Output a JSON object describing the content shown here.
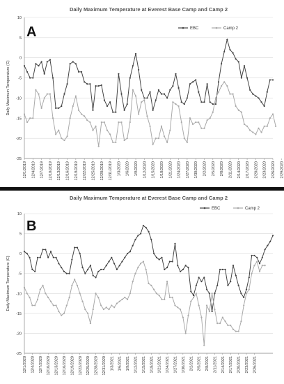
{
  "chart_data": [
    {
      "type": "line",
      "panel_label": "A",
      "title": "Daily Maximum Temperature at Everest Base Camp and Camp 2",
      "ylabel": "Daily Maximum Temperature (C)",
      "xlabel": "",
      "ylim": [
        -25,
        10
      ],
      "yticks": [
        -25,
        -20,
        -15,
        -10,
        -5,
        0,
        5,
        10
      ],
      "grid": true,
      "legend_position": "top-right",
      "tick_labels": [
        "12/1/2019",
        "12/4/2019",
        "12/7/2019",
        "12/10/2019",
        "12/13/2019",
        "12/16/2019",
        "12/19/2019",
        "12/22/2019",
        "12/25/2019",
        "12/28/2019",
        "12/31/2019",
        "1/3/2020",
        "1/6/2020",
        "1/9/2020",
        "1/12/2020",
        "1/15/2020",
        "1/18/2020",
        "1/21/2020",
        "1/24/2020",
        "1/27/2020",
        "1/30/2020",
        "2/2/2020",
        "2/5/2020",
        "2/8/2020",
        "2/11/2020",
        "2/14/2020",
        "2/17/2020",
        "2/20/2020",
        "2/23/2020",
        "2/26/2020",
        "2/29/2020"
      ],
      "series": [
        {
          "name": "EBC",
          "color": "#444444",
          "values": [
            -2,
            -3.5,
            -5,
            -5,
            -1.5,
            -2,
            -1,
            -4,
            -1,
            -0.5,
            -5,
            -12.5,
            -12.5,
            -12,
            -9,
            -6.5,
            -1.5,
            -1,
            -1.5,
            -3.5,
            -3.5,
            -6,
            -6.5,
            -6.5,
            -13,
            -7,
            -7,
            -6.8,
            -10.5,
            -12,
            -11,
            -13.5,
            -13.5,
            -4,
            -9,
            -13,
            -11.5,
            -5,
            -2,
            1,
            -3,
            -8,
            -10,
            -10,
            -8.5,
            -13,
            -10.5,
            -8,
            -9,
            -9,
            -10,
            -8,
            -7,
            -4,
            -7.5,
            -11,
            -11.5,
            -10,
            -6.5,
            -6,
            -5.5,
            -8.5,
            -11,
            -11,
            -6.5,
            -11,
            -11.5,
            -11.5,
            -6,
            -1.5,
            1.5,
            4.5,
            2,
            1.2,
            -0.3,
            -1,
            -5,
            -2,
            -5,
            -8,
            -9,
            -9.5,
            -10,
            -11,
            -12,
            -8.5,
            -5.5,
            -5.5
          ]
        },
        {
          "name": "Camp 2",
          "color": "#aaaaaa",
          "values": [
            -14,
            -16,
            -15,
            -15,
            -8,
            -9,
            -12.5,
            -10,
            -9,
            -9,
            -15,
            -19,
            -18,
            -20,
            -20.5,
            -19.5,
            -15,
            -12,
            -9.5,
            -13,
            -14,
            -14.5,
            -15.5,
            -16,
            -18,
            -17,
            -22,
            -16,
            -16,
            -18,
            -19,
            -21,
            -21,
            -16,
            -16,
            -20.5,
            -20,
            -16,
            -8,
            -9.5,
            -14,
            -11,
            -10.5,
            -14.5,
            -17,
            -21.5,
            -20,
            -20,
            -17,
            -19.5,
            -21,
            -18,
            -11,
            -11.5,
            -12,
            -16,
            -20,
            -21,
            -15,
            -16.5,
            -16,
            -16,
            -17.5,
            -17.5,
            -15.5,
            -15,
            -13.5,
            -10,
            -8.5,
            -7,
            -6,
            -7,
            -9,
            -9,
            -12,
            -13,
            -13.5,
            -16.5,
            -17,
            -18,
            -18.5,
            -19,
            -17.5,
            -18.5,
            -17,
            -17,
            -15,
            -14,
            -17
          ]
        }
      ]
    },
    {
      "type": "line",
      "panel_label": "B",
      "title": "Daily Maximum Temperature at Everest Base Camp and Camp 2",
      "ylabel": "Daily Maximum Temperature (C)",
      "xlabel": "",
      "ylim": [
        -25,
        10
      ],
      "yticks": [
        -25,
        -20,
        -15,
        -10,
        -5,
        0,
        5,
        10
      ],
      "grid": true,
      "legend_position": "top-right",
      "tick_labels": [
        "12/1/2020",
        "12/4/2020",
        "12/7/2020",
        "12/10/2020",
        "12/13/2020",
        "12/16/2020",
        "12/19/2020",
        "12/22/2020",
        "12/25/2020",
        "12/28/2020",
        "12/31/2020",
        "1/3/2021",
        "1/6/2021",
        "1/9/2021",
        "1/12/2021",
        "1/15/2021",
        "1/18/2021",
        "1/21/2021",
        "1/24/2021",
        "1/27/2021",
        "1/30/2021",
        "2/2/2021",
        "2/5/2021",
        "2/8/2021",
        "2/11/2021",
        "2/14/2021",
        "2/17/2021",
        "2/20/2021",
        "2/23/2021",
        "2/26/2021"
      ],
      "series": [
        {
          "name": "EBC",
          "color": "#444444",
          "values": [
            0.5,
            0,
            -1,
            -4,
            -4.5,
            -1,
            -1,
            1,
            1,
            -1,
            0.5,
            -1,
            -1,
            -2.5,
            -3.5,
            -4.5,
            -5,
            -5,
            -1.5,
            1.5,
            1.5,
            0,
            -3.5,
            -5,
            -4,
            -3,
            -5.5,
            -6,
            -4.5,
            -4,
            -4,
            -3,
            -2,
            -1,
            -2.5,
            -4,
            -3,
            -2,
            -1,
            0,
            0.5,
            2,
            3.5,
            4.5,
            5,
            7,
            6.5,
            5.5,
            3.5,
            0,
            -1,
            -1.5,
            -1,
            -4,
            -3.5,
            -2,
            -2,
            2.5,
            -3,
            -4.5,
            -4,
            -3,
            -3.5,
            -9.5,
            -10.5,
            -8,
            -6,
            -7,
            -6,
            -9,
            -10,
            -14.5,
            -10,
            -8,
            -4,
            -4,
            -4,
            -8,
            -7,
            -3,
            -5.5,
            -8,
            -10,
            -11,
            -9,
            -6,
            -0.5,
            -0.5,
            -1,
            -2.5,
            -1,
            1,
            2,
            3,
            4.5
          ]
        },
        {
          "name": "Camp 2",
          "color": "#aaaaaa",
          "values": [
            -8.5,
            -10,
            -11,
            -13,
            -13,
            -11.5,
            -9,
            -8,
            -10,
            -11,
            -12,
            -13,
            -13,
            -14.5,
            -15.5,
            -15,
            -13,
            -11,
            -8,
            -6.5,
            -8,
            -10,
            -12,
            -14,
            -15,
            -17.5,
            -14,
            -10,
            -11,
            -13,
            -14,
            -13.5,
            -14,
            -13,
            -13.5,
            -12.5,
            -12,
            -11.5,
            -11,
            -11.5,
            -10,
            -7,
            -5,
            -3.5,
            -2.5,
            -2,
            -4,
            -7.5,
            -8,
            -9,
            -10,
            -10.5,
            -11.5,
            -11.5,
            -7,
            -11,
            -11,
            -13,
            -13.5,
            -14,
            -16,
            -20,
            -15.5,
            -12,
            -11,
            -10,
            -13,
            -16,
            -23,
            -13,
            -14.5,
            -10,
            -14,
            -17.5,
            -17.5,
            -16,
            -17,
            -18,
            -18,
            -19,
            -19.5,
            -19.5,
            -17,
            -13,
            -10,
            -9,
            -5,
            -3,
            -2,
            -4.5,
            -3,
            -3
          ]
        }
      ]
    }
  ]
}
